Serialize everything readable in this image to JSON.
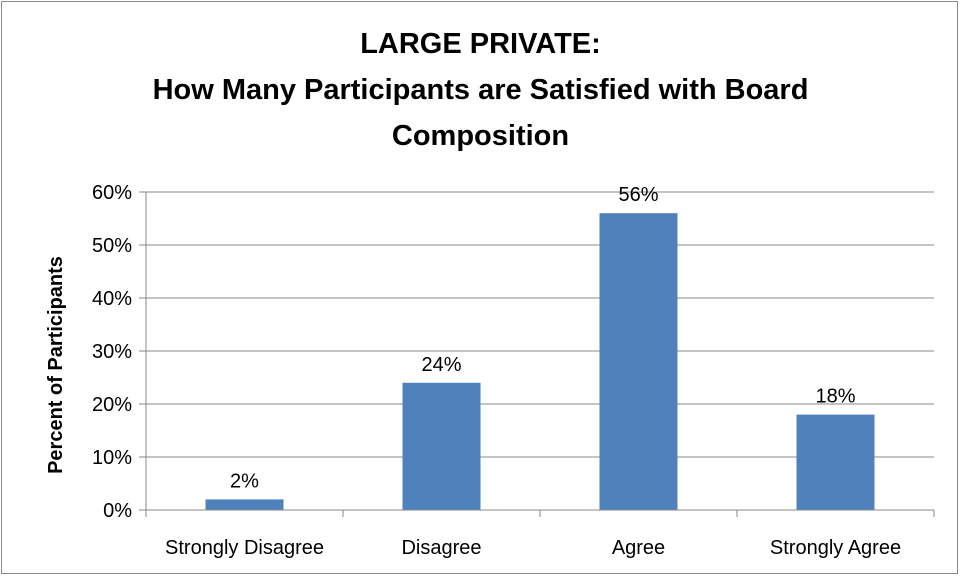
{
  "chart_data": {
    "type": "bar",
    "title_lines": [
      "LARGE PRIVATE:",
      "How Many Participants are Satisfied with Board",
      "Composition"
    ],
    "categories": [
      "Strongly Disagree",
      "Disagree",
      "Agree",
      "Strongly Agree"
    ],
    "values": [
      2,
      24,
      56,
      18
    ],
    "value_labels": [
      "2%",
      "24%",
      "56%",
      "18%"
    ],
    "xlabel": "",
    "ylabel": "Percent of Participants",
    "ylim": [
      0,
      60
    ],
    "yticks": [
      0,
      10,
      20,
      30,
      40,
      50,
      60
    ],
    "ytick_labels": [
      "0%",
      "10%",
      "20%",
      "30%",
      "40%",
      "50%",
      "60%"
    ],
    "grid": true,
    "legend": "none",
    "bar_color": "#4F81BD"
  }
}
